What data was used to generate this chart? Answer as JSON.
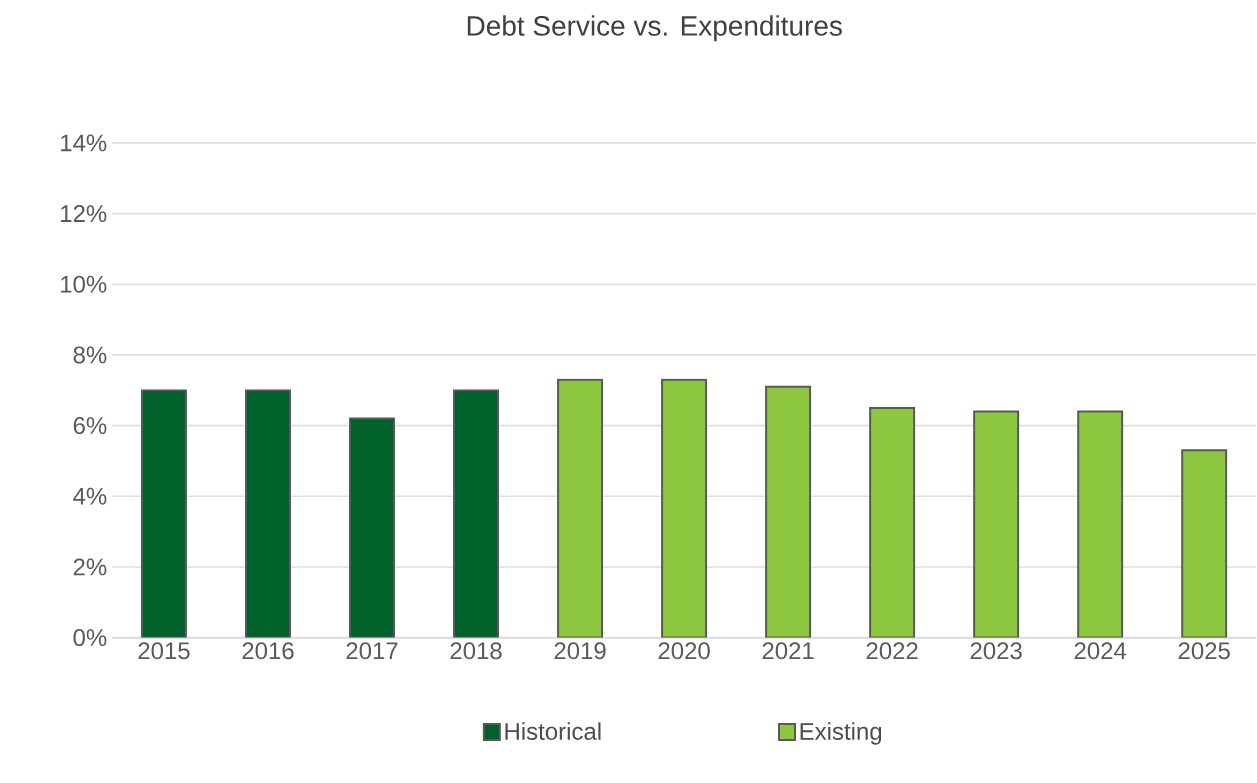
{
  "chart_data": {
    "type": "bar",
    "title": "Debt Service vs. Expenditures",
    "categories": [
      "2015",
      "2016",
      "2017",
      "2018",
      "2019",
      "2020",
      "2021",
      "2022",
      "2023",
      "2024",
      "2025"
    ],
    "series": [
      {
        "name": "Historical",
        "color": "#00622a",
        "values": [
          7.0,
          7.0,
          6.2,
          7.0,
          null,
          null,
          null,
          null,
          null,
          null,
          null
        ]
      },
      {
        "name": "Existing",
        "color": "#8dc63f",
        "values": [
          null,
          null,
          null,
          null,
          7.3,
          7.3,
          7.1,
          6.5,
          6.4,
          6.4,
          5.3
        ]
      }
    ],
    "ylim": [
      0,
      14
    ],
    "yticks": [
      {
        "value": 0,
        "label": "0%"
      },
      {
        "value": 2,
        "label": "2%"
      },
      {
        "value": 4,
        "label": "4%"
      },
      {
        "value": 6,
        "label": "6%"
      },
      {
        "value": 8,
        "label": "8%"
      },
      {
        "value": 10,
        "label": "10%"
      },
      {
        "value": 12,
        "label": "12%"
      },
      {
        "value": 14,
        "label": "14%"
      }
    ],
    "grid": "y",
    "legend": "bottom"
  }
}
